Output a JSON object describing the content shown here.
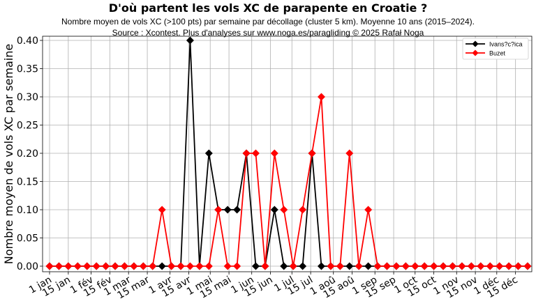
{
  "header": {
    "title": "D'où partent les vols XC de parapente en Croatie ?",
    "subtitle_line1": "Nombre moyen de vols XC (>100 pts) par semaine par décollage (cluster 5 km). Moyenne 10 ans (2015–2024).",
    "subtitle_line2": "Source : Xcontest. Plus d'analyses sur www.noga.es/paragliding © 2025 Rafał Noga"
  },
  "chart_data": {
    "type": "line",
    "title": "D'où partent les vols XC de parapente en Croatie ?",
    "xlabel": "",
    "ylabel": "Nombre moyen de vols XC par semaine",
    "ylim": [
      0,
      0.4
    ],
    "yticks": [
      "0.00",
      "0.05",
      "0.10",
      "0.15",
      "0.20",
      "0.25",
      "0.30",
      "0.35",
      "0.40"
    ],
    "xticks": [
      "1 jan",
      "15 jan",
      "1 fév",
      "15 fév",
      "1 mar",
      "15 mar",
      "1 avr",
      "15 avr",
      "1 mai",
      "15 mai",
      "1 jun",
      "15 jun",
      "1 jul",
      "15 jul",
      "1 aoû",
      "15 aoû",
      "1 sep",
      "15 sep",
      "1 oct",
      "15 oct",
      "1 nov",
      "15 nov",
      "1 déc",
      "15 déc"
    ],
    "grid": true,
    "legend_position": "upper right",
    "x": [
      1,
      2,
      3,
      4,
      5,
      6,
      7,
      8,
      9,
      10,
      11,
      12,
      13,
      14,
      15,
      16,
      17,
      18,
      19,
      20,
      21,
      22,
      23,
      24,
      25,
      26,
      27,
      28,
      29,
      30,
      31,
      32,
      33,
      34,
      35,
      36,
      37,
      38,
      39,
      40,
      41,
      42,
      43,
      44,
      45,
      46,
      47,
      48,
      49,
      50,
      51,
      52
    ],
    "series": [
      {
        "name": "Ivans?c?ica",
        "color": "#000000",
        "marker": "diamond",
        "values": [
          0,
          0,
          0,
          0,
          0,
          0,
          0,
          0,
          0,
          0,
          0,
          0,
          0,
          0,
          0,
          0.4,
          0,
          0.2,
          0.1,
          0.1,
          0.1,
          0.2,
          0,
          0,
          0.1,
          0,
          0,
          0,
          0.2,
          0,
          0,
          0,
          0,
          0,
          0,
          0,
          0,
          0,
          0,
          0,
          0,
          0,
          0,
          0,
          0,
          0,
          0,
          0,
          0,
          0,
          0,
          0
        ]
      },
      {
        "name": "Buzet",
        "color": "#ff0000",
        "marker": "diamond",
        "values": [
          0,
          0,
          0,
          0,
          0,
          0,
          0,
          0,
          0,
          0,
          0,
          0,
          0.1,
          0,
          0,
          0,
          0,
          0,
          0.1,
          0,
          0,
          0.2,
          0.2,
          0,
          0.2,
          0.1,
          0,
          0.1,
          0.2,
          0.3,
          0,
          0,
          0.2,
          0,
          0.1,
          0,
          0,
          0,
          0,
          0,
          0,
          0,
          0,
          0,
          0,
          0,
          0,
          0,
          0,
          0,
          0,
          0
        ]
      }
    ]
  }
}
